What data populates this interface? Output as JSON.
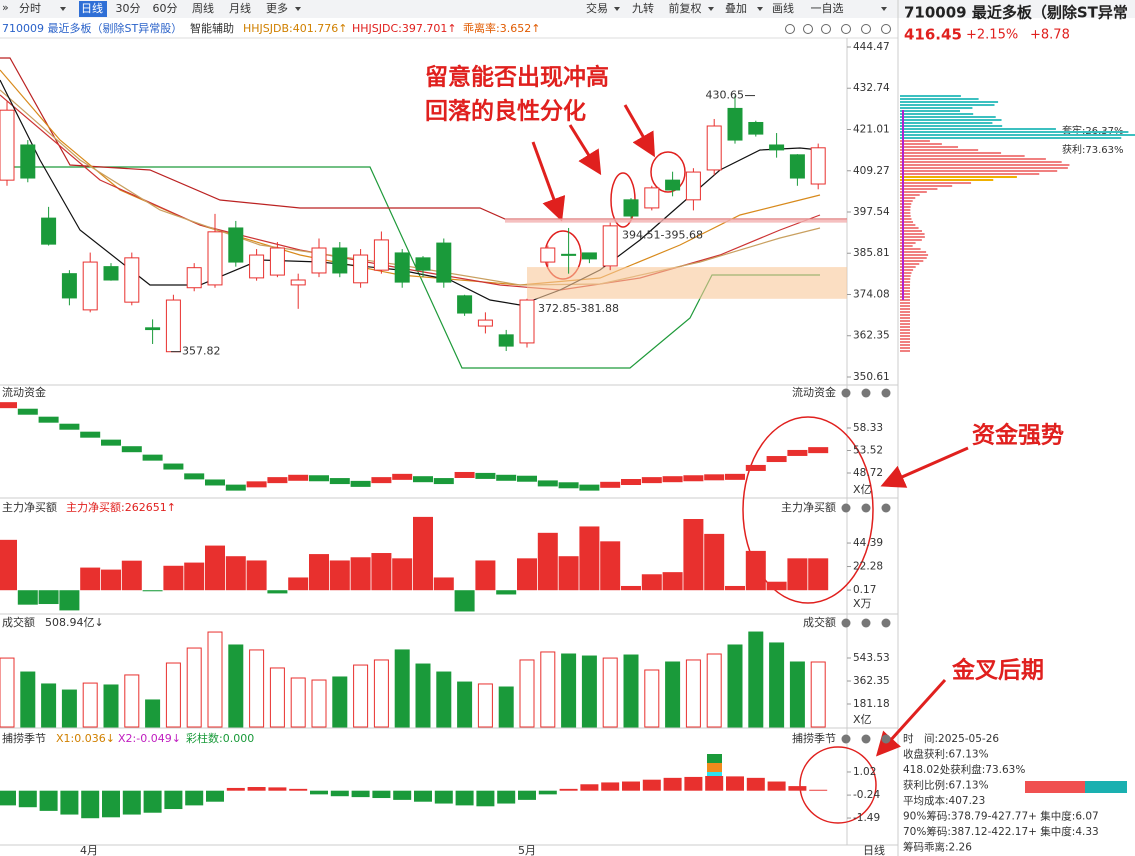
{
  "toolbar": {
    "left": [
      "分时",
      "日线",
      "30分",
      "60分",
      "周线",
      "月线",
      "更多"
    ],
    "right": [
      "交易",
      "九转",
      "前复权",
      "叠加",
      "画线",
      "一自选"
    ]
  },
  "info": {
    "title": "710009 最近多板（剔除ST异常股）",
    "assist": "智能辅助",
    "ind1": "HHJSJDB:401.776↑",
    "ind2": "HHJSJDC:397.701↑",
    "ind3": "乖离率:3.652↑"
  },
  "price": {
    "ylim": [
      350.61,
      444.47
    ],
    "yticks": [
      444.47,
      432.74,
      421.01,
      409.27,
      397.54,
      385.81,
      374.08,
      362.35,
      350.61
    ],
    "candles": {
      "open": [
        406.6,
        416.6,
        395.8,
        380,
        369.7,
        382,
        371.9,
        364.6,
        357.8,
        376,
        376.8,
        393,
        378.8,
        379.6,
        376.8,
        380.2,
        387.3,
        377.4,
        381,
        385.9,
        384.5,
        388.7,
        373.7,
        365.1,
        362.6,
        360.3,
        383.3,
        385.5,
        385.9,
        382.2,
        401,
        398.7,
        406.6,
        401,
        409.5,
        427,
        423,
        416.6,
        413.8,
        405.5
      ],
      "close": [
        426.5,
        407.2,
        388.4,
        373.1,
        383.3,
        378.2,
        384.5,
        364.1,
        372.5,
        381.7,
        391.9,
        383.3,
        385.3,
        387.3,
        378.2,
        387.3,
        380.2,
        385.3,
        389.6,
        377.6,
        381,
        377.6,
        368.8,
        366.8,
        359.4,
        372.5,
        387.3,
        385.2,
        384.2,
        393.6,
        396.4,
        404.4,
        403.8,
        408.9,
        422,
        418,
        419.7,
        415.2,
        407.2,
        415.8
      ],
      "high": [
        429,
        418,
        399,
        381,
        386,
        383,
        386,
        367,
        374,
        383,
        397,
        395,
        387,
        389,
        380,
        390,
        389,
        387,
        392,
        387,
        385,
        390,
        374,
        369,
        364,
        372.85,
        388,
        393,
        386,
        394.51,
        401.5,
        405,
        409,
        410,
        424,
        430.65,
        423.5,
        420,
        414,
        417
      ],
      "low": [
        405,
        406,
        388,
        371,
        369,
        378,
        371,
        360,
        357.82,
        375,
        376,
        382,
        378,
        379,
        370,
        379,
        379,
        376,
        380,
        376,
        379,
        376,
        368,
        363,
        358,
        359,
        382,
        380,
        383,
        381,
        395.68,
        398,
        402,
        398,
        408,
        417,
        419,
        413,
        405,
        404
      ]
    },
    "marks": [
      {
        "label": "430.65",
        "value": 430.65
      },
      {
        "label": "357.82",
        "value": 357.82
      }
    ],
    "zones": [
      {
        "label": "372.85-381.88",
        "low": 372.85,
        "high": 381.88
      },
      {
        "label": "394.51-395.68",
        "low": 394.51,
        "high": 395.68
      }
    ]
  },
  "annotations": {
    "note1": "留意能否出现冲高",
    "note2": "回落的良性分化",
    "note3": "资金强势",
    "note4": "金叉后期"
  },
  "flow": {
    "title": "流动资金",
    "title_right": "流动资金",
    "unit": "X亿",
    "ylim": [
      43.6,
      64.3
    ],
    "yticks": [
      58.33,
      53.52,
      48.72
    ],
    "values": [
      63.2,
      61.8,
      60.1,
      58.6,
      56.9,
      55.2,
      53.8,
      52.0,
      50.1,
      48.0,
      46.7,
      45.6,
      46.3,
      47.2,
      47.7,
      47.6,
      47.0,
      46.4,
      47.2,
      47.9,
      47.4,
      47.0,
      48.3,
      48.1,
      47.7,
      47.5,
      46.5,
      46.1,
      45.6,
      46.2,
      46.8,
      47.2,
      47.4,
      47.6,
      47.8,
      47.9,
      49.8,
      51.7,
      53.0,
      53.6
    ]
  },
  "netbuy": {
    "title": "主力净买额",
    "title_value": "主力净买额:262651↑",
    "title_right": "主力净买额",
    "unit": "X万",
    "ylim": [
      -20.5,
      73.6
    ],
    "yticks": [
      44.39,
      22.28,
      0.17
    ],
    "values": [
      47.4,
      -13.6,
      -13,
      -19,
      21.3,
      19.4,
      27.8,
      -1,
      23,
      26,
      42,
      32,
      28,
      -3,
      12,
      34,
      28,
      31,
      35,
      30,
      69,
      12,
      -20,
      28,
      -4,
      30,
      54,
      32,
      60,
      46,
      4,
      15,
      17,
      67,
      53,
      4,
      37,
      8,
      30,
      30
    ]
  },
  "volume": {
    "title": "成交额",
    "title_value": "508.94亿↓",
    "title_right": "成交额",
    "unit": "X亿",
    "ylim": [
      0,
      779.8
    ],
    "yticks": [
      543.53,
      362.35,
      181.18
    ],
    "values": [
      543,
      433,
      339,
      291,
      346,
      331,
      410,
      213,
      504,
      622,
      748,
      646,
      607,
      465,
      386,
      370,
      394,
      488,
      528,
      607,
      496,
      433,
      354,
      339,
      315,
      528,
      591,
      575,
      559,
      543,
      567,
      449,
      512,
      528,
      575,
      646,
      748,
      662,
      512,
      512
    ]
  },
  "indicator": {
    "title": "捕捞季节",
    "x1": "X1:0.036↓",
    "x2": "X2:-0.049↓",
    "bars": "彩柱数:0.000",
    "title_right": "捕捞季节",
    "ylim": [
      -2.85,
      2.49
    ],
    "yticks": [
      1.02,
      -0.24,
      -1.49
    ],
    "values": [
      -0.8,
      -0.9,
      -1.1,
      -1.3,
      -1.5,
      -1.45,
      -1.3,
      -1.2,
      -1.0,
      -0.8,
      -0.6,
      0.15,
      0.2,
      0.18,
      0.1,
      -0.2,
      -0.3,
      -0.35,
      -0.4,
      -0.5,
      -0.6,
      -0.7,
      -0.8,
      -0.85,
      -0.7,
      -0.5,
      -0.2,
      0.1,
      0.35,
      0.45,
      0.5,
      0.6,
      0.7,
      0.75,
      0.8,
      0.78,
      0.7,
      0.5,
      0.25,
      0.05
    ]
  },
  "dates": [
    "4月",
    "5月",
    "日线"
  ],
  "side": {
    "title": "710009 最近多板（剔除ST异常",
    "price": "416.45",
    "pct": "+2.15%",
    "chg": "+8.78",
    "trapped": "套牢:26.37%",
    "profit": "获利:73.63%",
    "lines": [
      "时　间:2025-05-26",
      "收盘获利:67.13%",
      "418.02处获利盘:73.63%",
      "获利比例:67.13%",
      "平均成本:407.23",
      "90%筹码:378.79-427.77+ 集中度:6.07",
      "70%筹码:387.12-422.17+ 集中度:4.33",
      "筹码乖离:2.26"
    ]
  }
}
